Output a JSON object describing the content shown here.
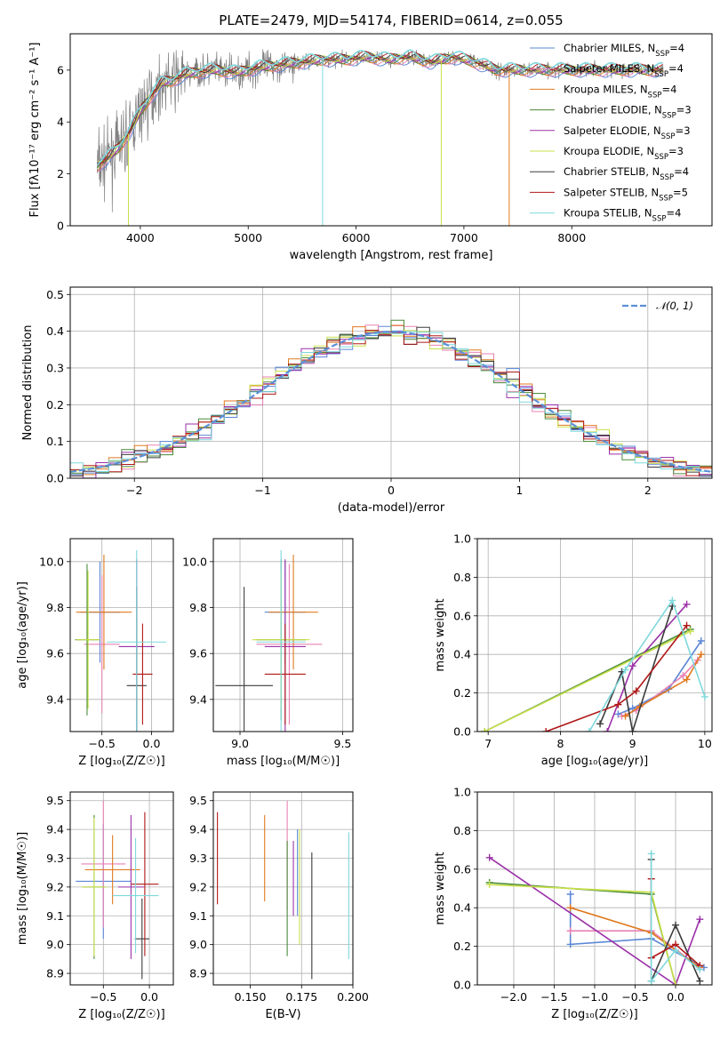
{
  "colors": {
    "chabrier_miles": "#5b86d6",
    "salpeter_miles": "#e882b4",
    "kroupa_miles": "#e07a20",
    "chabrier_elodie": "#4a8a3a",
    "salpeter_elodie": "#9b30a8",
    "kroupa_elodie": "#c8e04a",
    "chabrier_stelib": "#3c3c3c",
    "salpeter_stelib": "#b01818",
    "kroupa_stelib": "#7fd8dc",
    "data": "#808080",
    "gaussian": "#5b8fd6"
  },
  "models": [
    {
      "key": "chabrier_miles",
      "label": "Chabrier MILES, N",
      "n": "=4"
    },
    {
      "key": "salpeter_miles",
      "label": "Salpeter MILES, N",
      "n": "=4"
    },
    {
      "key": "kroupa_miles",
      "label": "Kroupa MILES, N",
      "n": "=4"
    },
    {
      "key": "chabrier_elodie",
      "label": "Chabrier ELODIE, N",
      "n": "=3"
    },
    {
      "key": "salpeter_elodie",
      "label": "Salpeter ELODIE, N",
      "n": "=3"
    },
    {
      "key": "kroupa_elodie",
      "label": "Kroupa ELODIE, N",
      "n": "=3"
    },
    {
      "key": "chabrier_stelib",
      "label": "Chabrier STELIB, N",
      "n": "=4"
    },
    {
      "key": "salpeter_stelib",
      "label": "Salpeter STELIB, N",
      "n": "=5"
    },
    {
      "key": "kroupa_stelib",
      "label": "Kroupa STELIB, N",
      "n": "=4"
    }
  ],
  "chart_data": [
    {
      "type": "line",
      "title": "PLATE=2479, MJD=54174, FIBERID=0614, z=0.055",
      "xlabel": "wavelength [Angstrom, rest frame]",
      "ylabel": "Flux [fλ10⁻¹⁷ erg cm⁻² s⁻¹ A⁻¹]",
      "xlim": [
        3350,
        9300
      ],
      "ylim": [
        0,
        7.4
      ],
      "xticks": [
        "4000",
        "5000",
        "6000",
        "7000",
        "8000"
      ],
      "yticks": [
        "0",
        "2",
        "4",
        "6"
      ],
      "legend": "top-right",
      "continuum": {
        "x": [
          3600,
          3700,
          3800,
          3900,
          4000,
          4100,
          4200,
          4300,
          4400,
          4500,
          4700,
          4900,
          5100,
          5300,
          5500,
          5700,
          5900,
          6100,
          6300,
          6500,
          6700,
          6900,
          7100,
          7300,
          7400
        ],
        "y": [
          2.3,
          2.6,
          3.0,
          3.6,
          4.4,
          5.0,
          5.5,
          5.6,
          5.8,
          5.9,
          6.0,
          5.9,
          6.1,
          6.2,
          6.3,
          6.4,
          6.4,
          6.5,
          6.4,
          6.5,
          6.3,
          6.5,
          6.3,
          6.0,
          6.0
        ]
      },
      "dips": [
        {
          "x": 5690,
          "model": "kroupa_stelib"
        },
        {
          "x": 6790,
          "model": "kroupa_elodie"
        },
        {
          "x": 7420,
          "model": "kroupa_miles"
        },
        {
          "x": 3890,
          "model": "kroupa_elodie"
        }
      ]
    },
    {
      "type": "bar",
      "subtype": "step-histogram",
      "xlabel": "(data-model)/error",
      "ylabel": "Normed distribution",
      "xlim": [
        -2.5,
        2.5
      ],
      "ylim": [
        0,
        0.52
      ],
      "xticks": [
        "−2",
        "−1",
        "0",
        "1",
        "2"
      ],
      "yticks": [
        "0.0",
        "0.1",
        "0.2",
        "0.3",
        "0.4",
        "0.5"
      ],
      "legend": "top-right",
      "legend_label": "𝒩(0, 1)",
      "bin_width": 0.1,
      "bin_start": -2.5
    },
    {
      "type": "scatter",
      "subtype": "errorbar",
      "xlabel": "Z [log₁₀(Z/Z☉)]",
      "ylabel": "age  [log₁₀(age/yr)]",
      "xlim": [
        -0.82,
        0.22
      ],
      "ylim": [
        9.26,
        10.1
      ],
      "xticks": [
        "−0.5",
        "0.0"
      ],
      "yticks": [
        "9.4",
        "9.6",
        "9.8",
        "10.0"
      ],
      "points": [
        {
          "model": "chabrier_miles",
          "x": -0.52,
          "xerr": 0.2,
          "y": 9.78,
          "yerr": 0.22
        },
        {
          "model": "salpeter_miles",
          "x": -0.5,
          "xerr": 0.18,
          "y": 9.64,
          "yerr": 0.3
        },
        {
          "model": "kroupa_miles",
          "x": -0.48,
          "xerr": 0.28,
          "y": 9.78,
          "yerr": 0.25
        },
        {
          "model": "chabrier_elodie",
          "x": -0.65,
          "xerr": 0.12,
          "y": 9.66,
          "yerr": 0.33
        },
        {
          "model": "salpeter_elodie",
          "x": -0.15,
          "xerr": 0.18,
          "y": 9.63,
          "yerr": 0.38
        },
        {
          "model": "kroupa_elodie",
          "x": -0.64,
          "xerr": 0.12,
          "y": 9.66,
          "yerr": 0.3
        },
        {
          "model": "chabrier_stelib",
          "x": -0.15,
          "xerr": 0.1,
          "y": 9.46,
          "yerr": 0.43
        },
        {
          "model": "salpeter_stelib",
          "x": -0.09,
          "xerr": 0.1,
          "y": 9.51,
          "yerr": 0.22
        },
        {
          "model": "kroupa_stelib",
          "x": -0.15,
          "xerr": 0.3,
          "y": 9.65,
          "yerr": 0.4
        }
      ]
    },
    {
      "type": "scatter",
      "subtype": "errorbar",
      "xlabel": "mass [log₁₀(M/M☉)]",
      "ylabel": "",
      "xlim": [
        8.87,
        9.55
      ],
      "ylim": [
        9.26,
        10.1
      ],
      "xticks": [
        "9.0",
        "9.5"
      ],
      "yticks": [
        "9.4",
        "9.6",
        "9.8",
        "10.0"
      ],
      "points": [
        {
          "model": "chabrier_miles",
          "x": 9.22,
          "xerr": 0.1,
          "y": 9.78,
          "yerr": 0.22
        },
        {
          "model": "salpeter_miles",
          "x": 9.24,
          "xerr": 0.16,
          "y": 9.64,
          "yerr": 0.35
        },
        {
          "model": "kroupa_miles",
          "x": 9.26,
          "xerr": 0.12,
          "y": 9.78,
          "yerr": 0.25
        },
        {
          "model": "chabrier_elodie",
          "x": 9.2,
          "xerr": 0.12,
          "y": 9.66,
          "yerr": 0.35
        },
        {
          "model": "salpeter_elodie",
          "x": 9.22,
          "xerr": 0.1,
          "y": 9.63,
          "yerr": 0.38
        },
        {
          "model": "kroupa_elodie",
          "x": 9.2,
          "xerr": 0.14,
          "y": 9.66,
          "yerr": 0.3
        },
        {
          "model": "chabrier_stelib",
          "x": 9.02,
          "xerr": 0.14,
          "y": 9.46,
          "yerr": 0.43
        },
        {
          "model": "salpeter_stelib",
          "x": 9.22,
          "xerr": 0.1,
          "y": 9.51,
          "yerr": 0.22
        },
        {
          "model": "kroupa_stelib",
          "x": 9.2,
          "xerr": 0.12,
          "y": 9.65,
          "yerr": 0.4
        }
      ]
    },
    {
      "type": "line",
      "xlabel": "age  [log₁₀(age/yr)]",
      "ylabel": "mass weight",
      "xlim": [
        6.85,
        10.1
      ],
      "ylim": [
        0,
        1
      ],
      "xticks": [
        "7",
        "8",
        "9",
        "10"
      ],
      "yticks": [
        "0.0",
        "0.2",
        "0.4",
        "0.6",
        "0.8",
        "1.0"
      ],
      "series": [
        {
          "model": "chabrier_miles",
          "x": [
            8.8,
            9.0,
            9.5,
            9.95
          ],
          "y": [
            0.09,
            0.12,
            0.22,
            0.47
          ]
        },
        {
          "model": "salpeter_miles",
          "x": [
            8.85,
            9.05,
            9.7,
            9.9
          ],
          "y": [
            0.08,
            0.11,
            0.29,
            0.37
          ]
        },
        {
          "model": "kroupa_miles",
          "x": [
            8.9,
            9.1,
            9.75,
            9.95
          ],
          "y": [
            0.08,
            0.13,
            0.27,
            0.4
          ]
        },
        {
          "model": "chabrier_elodie",
          "x": [
            6.95,
            9.8
          ],
          "y": [
            0.0,
            0.53
          ]
        },
        {
          "model": "salpeter_elodie",
          "x": [
            8.65,
            9.0,
            9.75
          ],
          "y": [
            0.0,
            0.34,
            0.66
          ]
        },
        {
          "model": "kroupa_elodie",
          "x": [
            6.95,
            9.8
          ],
          "y": [
            0.0,
            0.52
          ]
        },
        {
          "model": "chabrier_stelib",
          "x": [
            8.55,
            8.85,
            9.0,
            9.55
          ],
          "y": [
            0.04,
            0.31,
            0.0,
            0.65
          ]
        },
        {
          "model": "salpeter_stelib",
          "x": [
            7.8,
            8.8,
            9.05,
            9.75
          ],
          "y": [
            0.0,
            0.14,
            0.21,
            0.55
          ]
        },
        {
          "model": "kroupa_stelib",
          "x": [
            8.4,
            8.9,
            9.55,
            10.0
          ],
          "y": [
            0.0,
            0.32,
            0.68,
            0.18
          ]
        }
      ]
    },
    {
      "type": "scatter",
      "subtype": "errorbar",
      "xlabel": "Z [log₁₀(Z/Z☉)]",
      "ylabel": "mass [log₁₀(M/M☉)]",
      "xlim": [
        -0.86,
        0.26
      ],
      "ylim": [
        8.86,
        9.53
      ],
      "xticks": [
        "−0.5",
        "0.0"
      ],
      "yticks": [
        "8.9",
        "9.0",
        "9.1",
        "9.2",
        "9.3",
        "9.4",
        "9.5"
      ],
      "points": [
        {
          "model": "chabrier_miles",
          "x": -0.5,
          "xerr": 0.3,
          "y": 9.22,
          "yerr": 0.2
        },
        {
          "model": "salpeter_miles",
          "x": -0.5,
          "xerr": 0.24,
          "y": 9.28,
          "yerr": 0.22
        },
        {
          "model": "kroupa_miles",
          "x": -0.4,
          "xerr": 0.3,
          "y": 9.26,
          "yerr": 0.12
        },
        {
          "model": "chabrier_elodie",
          "x": -0.6,
          "xerr": 0.12,
          "y": 9.2,
          "yerr": 0.25
        },
        {
          "model": "salpeter_elodie",
          "x": -0.2,
          "xerr": 0.14,
          "y": 9.2,
          "yerr": 0.25
        },
        {
          "model": "kroupa_elodie",
          "x": -0.6,
          "xerr": 0.14,
          "y": 9.2,
          "yerr": 0.24
        },
        {
          "model": "chabrier_stelib",
          "x": -0.08,
          "xerr": 0.08,
          "y": 9.02,
          "yerr": 0.14
        },
        {
          "model": "salpeter_stelib",
          "x": -0.05,
          "xerr": 0.15,
          "y": 9.21,
          "yerr": 0.25
        },
        {
          "model": "kroupa_stelib",
          "x": -0.15,
          "xerr": 0.25,
          "y": 9.17,
          "yerr": 0.2
        }
      ]
    },
    {
      "type": "scatter",
      "subtype": "errorbar",
      "xlabel": "E(B-V)",
      "ylabel": "",
      "xlim": [
        0.132,
        0.2
      ],
      "ylim": [
        8.86,
        9.53
      ],
      "xticks": [
        "0.150",
        "0.175",
        "0.200"
      ],
      "yticks": [
        "8.9",
        "9.0",
        "9.1",
        "9.2",
        "9.3",
        "9.4",
        "9.5"
      ],
      "points": [
        {
          "model": "chabrier_miles",
          "x": 0.173,
          "y": 9.25,
          "yerr": 0.15
        },
        {
          "model": "salpeter_miles",
          "x": 0.168,
          "y": 9.31,
          "yerr": 0.19
        },
        {
          "model": "kroupa_miles",
          "x": 0.157,
          "y": 9.3,
          "yerr": 0.15
        },
        {
          "model": "chabrier_elodie",
          "x": 0.168,
          "y": 9.16,
          "yerr": 0.2
        },
        {
          "model": "salpeter_elodie",
          "x": 0.171,
          "y": 9.23,
          "yerr": 0.13
        },
        {
          "model": "kroupa_elodie",
          "x": 0.174,
          "y": 9.2,
          "yerr": 0.2
        },
        {
          "model": "chabrier_stelib",
          "x": 0.18,
          "y": 9.1,
          "yerr": 0.22
        },
        {
          "model": "salpeter_stelib",
          "x": 0.134,
          "y": 9.3,
          "yerr": 0.16
        },
        {
          "model": "kroupa_stelib",
          "x": 0.198,
          "y": 9.17,
          "yerr": 0.22
        }
      ]
    },
    {
      "type": "line",
      "xlabel": "Z [log₁₀(Z/Z☉)]",
      "ylabel": "mass weight",
      "xlim": [
        -2.45,
        0.45
      ],
      "ylim": [
        0,
        1
      ],
      "xticks": [
        "−2.0",
        "−1.5",
        "−1.0",
        "−0.5",
        "0.0"
      ],
      "yticks": [
        "0.0",
        "0.2",
        "0.4",
        "0.6",
        "0.8",
        "1.0"
      ],
      "series": [
        {
          "model": "chabrier_miles",
          "x": [
            -1.3,
            -1.3,
            -0.3,
            0.35
          ],
          "y": [
            0.47,
            0.21,
            0.24,
            0.09
          ]
        },
        {
          "model": "salpeter_miles",
          "x": [
            -1.3,
            -0.3,
            0.3
          ],
          "y": [
            0.28,
            0.28,
            0.09
          ]
        },
        {
          "model": "kroupa_miles",
          "x": [
            -1.3,
            -0.3,
            0.3
          ],
          "y": [
            0.4,
            0.27,
            0.09
          ]
        },
        {
          "model": "chabrier_elodie",
          "x": [
            -2.3,
            -0.3,
            0.0
          ],
          "y": [
            0.53,
            0.47,
            0.0
          ]
        },
        {
          "model": "salpeter_elodie",
          "x": [
            -2.3,
            0.0,
            0.3
          ],
          "y": [
            0.66,
            0.0,
            0.34
          ]
        },
        {
          "model": "kroupa_elodie",
          "x": [
            -2.3,
            -0.3,
            0.0
          ],
          "y": [
            0.52,
            0.48,
            0.0
          ]
        },
        {
          "model": "chabrier_stelib",
          "x": [
            -0.3,
            -0.3,
            0.0,
            0.3
          ],
          "y": [
            0.65,
            0.02,
            0.31,
            0.02
          ]
        },
        {
          "model": "salpeter_stelib",
          "x": [
            -0.3,
            -0.3,
            0.0,
            0.3
          ],
          "y": [
            0.55,
            0.14,
            0.21,
            0.1
          ]
        },
        {
          "model": "kroupa_stelib",
          "x": [
            -0.3,
            -0.3,
            0.0,
            0.3
          ],
          "y": [
            0.68,
            0.02,
            0.18,
            0.08
          ]
        }
      ]
    }
  ]
}
